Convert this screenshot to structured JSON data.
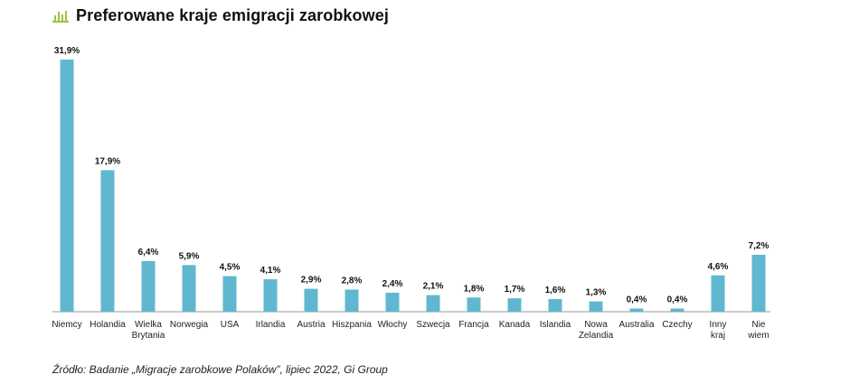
{
  "header": {
    "title": "Preferowane kraje emigracji zarobkowej",
    "icon": "bar-chart-icon",
    "icon_color": "#9BC53D"
  },
  "chart_data": {
    "type": "bar",
    "title": "Preferowane kraje emigracji zarobkowej",
    "xlabel": "",
    "ylabel": "",
    "ylim": [
      0,
      32
    ],
    "grid": false,
    "bar_color": "#5FB8D0",
    "categories": [
      [
        "Niemcy"
      ],
      [
        "Holandia"
      ],
      [
        "Wielka",
        "Brytania"
      ],
      [
        "Norwegia"
      ],
      [
        "USA"
      ],
      [
        "Irlandia"
      ],
      [
        "Austria"
      ],
      [
        "Hiszpania"
      ],
      [
        "Włochy"
      ],
      [
        "Szwecja"
      ],
      [
        "Francja"
      ],
      [
        "Kanada"
      ],
      [
        "Islandia"
      ],
      [
        "Nowa",
        "Zelandia"
      ],
      [
        "Australia"
      ],
      [
        "Czechy"
      ],
      [
        "Inny",
        "kraj"
      ],
      [
        "Nie",
        "wiem"
      ]
    ],
    "values": [
      31.9,
      17.9,
      6.4,
      5.9,
      4.5,
      4.1,
      2.9,
      2.8,
      2.4,
      2.1,
      1.8,
      1.7,
      1.6,
      1.3,
      0.4,
      0.4,
      4.6,
      7.2
    ],
    "value_labels": [
      "31,9%",
      "17,9%",
      "6,4%",
      "5,9%",
      "4,5%",
      "4,1%",
      "2,9%",
      "2,8%",
      "2,4%",
      "2,1%",
      "1,8%",
      "1,7%",
      "1,6%",
      "1,3%",
      "0,4%",
      "0,4%",
      "4,6%",
      "7,2%"
    ]
  },
  "source": "Źródło: Badanie „Migracje zarobkowe Polaków”, lipiec 2022, Gi Group"
}
